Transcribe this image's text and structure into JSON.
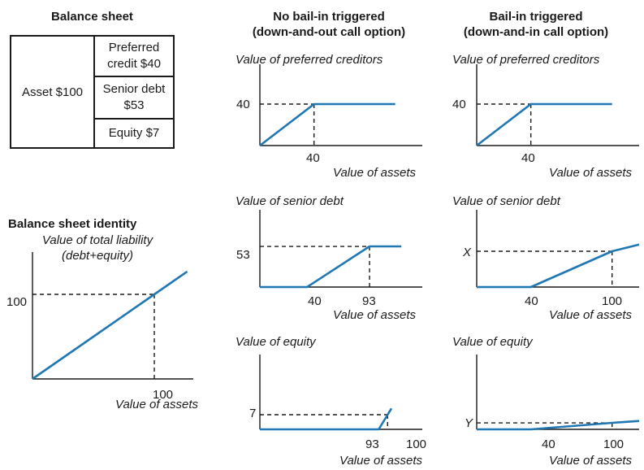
{
  "balance_sheet": {
    "title": "Balance sheet",
    "asset": "Asset $100",
    "preferred": "Preferred credit $40",
    "senior": "Senior debt $53",
    "equity": "Equity $7"
  },
  "identity": {
    "title": "Balance sheet identity",
    "ylabel_line1": "Value of total liability",
    "ylabel_line2": "(debt+equity)",
    "xlabel": "Value of assets"
  },
  "columns": {
    "no_bailin": {
      "line1": "No bail-in triggered",
      "line2": "(down-and-out call option)"
    },
    "bailin": {
      "line1": "Bail-in triggered",
      "line2": "(down-and-in call option)"
    }
  },
  "colors": {
    "line": "#1f77b4",
    "axis": "#1a1a1a"
  },
  "chart_data": [
    {
      "id": "identity",
      "type": "line",
      "ylabel": "Value of total liability (debt+equity)",
      "xlabel": "Value of assets",
      "series": [
        {
          "x": [
            0,
            100,
            127
          ],
          "y": [
            0,
            100,
            127
          ]
        }
      ],
      "xticks": [
        "100"
      ],
      "yticks": [
        "100"
      ],
      "guide": {
        "x": 100,
        "y": 100
      }
    },
    {
      "id": "no-bailin-preferred",
      "type": "line",
      "title": "Value of preferred creditors",
      "xlabel": "Value of assets",
      "series": [
        {
          "x": [
            0,
            40,
            100
          ],
          "y": [
            0,
            40,
            40
          ]
        }
      ],
      "xticks": [
        "40"
      ],
      "yticks": [
        "40"
      ],
      "guide": {
        "x": 40,
        "y": 40
      }
    },
    {
      "id": "no-bailin-senior",
      "type": "line",
      "title": "Value of senior debt",
      "xlabel": "Value of assets",
      "series": [
        {
          "x": [
            0,
            40,
            93,
            120
          ],
          "y": [
            0,
            0,
            53,
            53
          ]
        }
      ],
      "xticks": [
        "40",
        "93"
      ],
      "yticks": [
        "53"
      ],
      "guide": {
        "x": 93,
        "y": 53
      }
    },
    {
      "id": "no-bailin-equity",
      "type": "line",
      "title": "Value of equity",
      "xlabel": "Value of assets",
      "series": [
        {
          "x": [
            0,
            93,
            100,
            103
          ],
          "y": [
            0,
            0,
            7,
            10
          ]
        }
      ],
      "xticks": [
        "93",
        "100"
      ],
      "yticks": [
        "7"
      ],
      "guide": {
        "x": 100,
        "y": 7
      }
    },
    {
      "id": "bailin-preferred",
      "type": "line",
      "title": "Value of preferred creditors",
      "xlabel": "Value of assets",
      "series": [
        {
          "x": [
            0,
            40,
            100
          ],
          "y": [
            0,
            40,
            40
          ]
        }
      ],
      "xticks": [
        "40"
      ],
      "yticks": [
        "40"
      ],
      "guide": {
        "x": 40,
        "y": 40
      }
    },
    {
      "id": "bailin-senior",
      "type": "line",
      "title": "Value of senior debt",
      "xlabel": "Value of assets",
      "series": [
        {
          "x": [
            0,
            40,
            100,
            120
          ],
          "y": [
            0,
            0,
            53,
            63
          ]
        }
      ],
      "xticks": [
        "40",
        "100"
      ],
      "yticks": [
        "X"
      ],
      "guide": {
        "x": 100,
        "y": 53
      }
    },
    {
      "id": "bailin-equity",
      "type": "line",
      "title": "Value of equity",
      "xlabel": "Value of assets",
      "series": [
        {
          "x": [
            0,
            40,
            100,
            120
          ],
          "y": [
            0,
            0,
            7,
            9
          ]
        }
      ],
      "xticks": [
        "40",
        "100"
      ],
      "yticks": [
        "Y"
      ],
      "guide": {
        "x": 100,
        "y": 7
      }
    }
  ]
}
